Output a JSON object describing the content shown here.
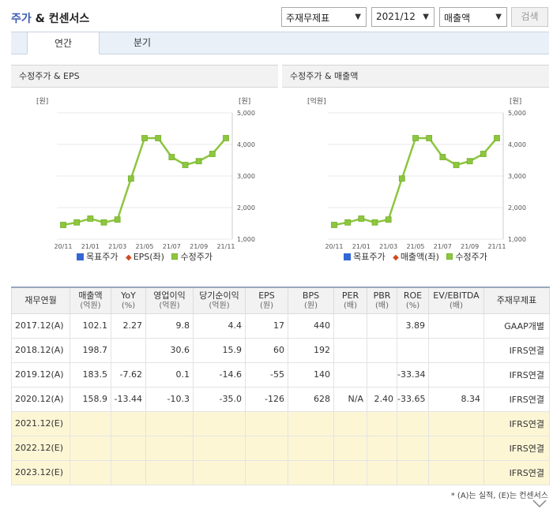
{
  "header": {
    "title_main": "주가",
    "title_rest": " & 컨센서스",
    "select_type": "주재무제표",
    "select_period": "2021/12",
    "select_item": "매출액",
    "search_label": "검색"
  },
  "tabs": [
    {
      "label": "연간",
      "active": true
    },
    {
      "label": "분기",
      "active": false
    }
  ],
  "charts": [
    {
      "title": "수정주가 & EPS",
      "left_unit": "[원]",
      "right_unit": "[원]",
      "legend": [
        "목표주가",
        "EPS(좌)",
        "수정주가"
      ]
    },
    {
      "title": "수정주가 & 매출액",
      "left_unit": "[억원]",
      "right_unit": "[원]",
      "legend": [
        "목표주가",
        "매출액(좌)",
        "수정주가"
      ]
    }
  ],
  "chart_data": [
    {
      "type": "line",
      "title": "수정주가 & EPS",
      "categories": [
        "20/11",
        "20/12",
        "21/01",
        "21/02",
        "21/03",
        "21/04",
        "21/05",
        "21/06",
        "21/07",
        "21/08",
        "21/09",
        "21/10",
        "21/11"
      ],
      "x_tick_labels": [
        "20/11",
        "21/01",
        "21/03",
        "21/05",
        "21/07",
        "21/09",
        "21/11"
      ],
      "y_right_ticks": [
        "5,000",
        "4,000",
        "3,000",
        "2,000",
        "1,000"
      ],
      "y_right_range": [
        1000,
        5000
      ],
      "series": [
        {
          "name": "수정주가",
          "color": "#8dc63f",
          "values": [
            1450,
            1530,
            1650,
            1530,
            1620,
            2920,
            4200,
            4200,
            3600,
            3350,
            3470,
            3700,
            4200
          ]
        }
      ]
    },
    {
      "type": "line",
      "title": "수정주가 & 매출액",
      "categories": [
        "20/11",
        "20/12",
        "21/01",
        "21/02",
        "21/03",
        "21/04",
        "21/05",
        "21/06",
        "21/07",
        "21/08",
        "21/09",
        "21/10",
        "21/11"
      ],
      "x_tick_labels": [
        "20/11",
        "21/01",
        "21/03",
        "21/05",
        "21/07",
        "21/09",
        "21/11"
      ],
      "y_right_ticks": [
        "5,000",
        "4,000",
        "3,000",
        "2,000",
        "1,000"
      ],
      "y_right_range": [
        1000,
        5000
      ],
      "series": [
        {
          "name": "수정주가",
          "color": "#8dc63f",
          "values": [
            1450,
            1530,
            1650,
            1530,
            1620,
            2920,
            4200,
            4200,
            3600,
            3350,
            3470,
            3700,
            4200
          ]
        }
      ]
    }
  ],
  "table": {
    "headers": [
      {
        "main": "재무연월",
        "sub": ""
      },
      {
        "main": "매출액",
        "sub": "(억원)"
      },
      {
        "main": "YoY",
        "sub": "(%)"
      },
      {
        "main": "영업이익",
        "sub": "(억원)"
      },
      {
        "main": "당기순이익",
        "sub": "(억원)"
      },
      {
        "main": "EPS",
        "sub": "(원)"
      },
      {
        "main": "BPS",
        "sub": "(원)"
      },
      {
        "main": "PER",
        "sub": "(배)"
      },
      {
        "main": "PBR",
        "sub": "(배)"
      },
      {
        "main": "ROE",
        "sub": "(%)"
      },
      {
        "main": "EV/EBITDA",
        "sub": "(배)"
      },
      {
        "main": "주재무제표",
        "sub": ""
      }
    ],
    "rows": [
      {
        "est": false,
        "cells": [
          "2017.12(A)",
          "102.1",
          "2.27",
          "9.8",
          "4.4",
          "17",
          "440",
          "",
          "",
          "3.89",
          "",
          "GAAP개별"
        ]
      },
      {
        "est": false,
        "cells": [
          "2018.12(A)",
          "198.7",
          "",
          "30.6",
          "15.9",
          "60",
          "192",
          "",
          "",
          "",
          "",
          "IFRS연결"
        ]
      },
      {
        "est": false,
        "cells": [
          "2019.12(A)",
          "183.5",
          "-7.62",
          "0.1",
          "-14.6",
          "-55",
          "140",
          "",
          "",
          "-33.34",
          "",
          "IFRS연결"
        ]
      },
      {
        "est": false,
        "cells": [
          "2020.12(A)",
          "158.9",
          "-13.44",
          "-10.3",
          "-35.0",
          "-126",
          "628",
          "N/A",
          "2.40",
          "-33.65",
          "8.34",
          "IFRS연결"
        ]
      },
      {
        "est": true,
        "cells": [
          "2021.12(E)",
          "",
          "",
          "",
          "",
          "",
          "",
          "",
          "",
          "",
          "",
          "IFRS연결"
        ]
      },
      {
        "est": true,
        "cells": [
          "2022.12(E)",
          "",
          "",
          "",
          "",
          "",
          "",
          "",
          "",
          "",
          "",
          "IFRS연결"
        ]
      },
      {
        "est": true,
        "cells": [
          "2023.12(E)",
          "",
          "",
          "",
          "",
          "",
          "",
          "",
          "",
          "",
          "",
          "IFRS연결"
        ]
      }
    ]
  },
  "note": "* (A)는 실적, (E)는 컨센서스"
}
